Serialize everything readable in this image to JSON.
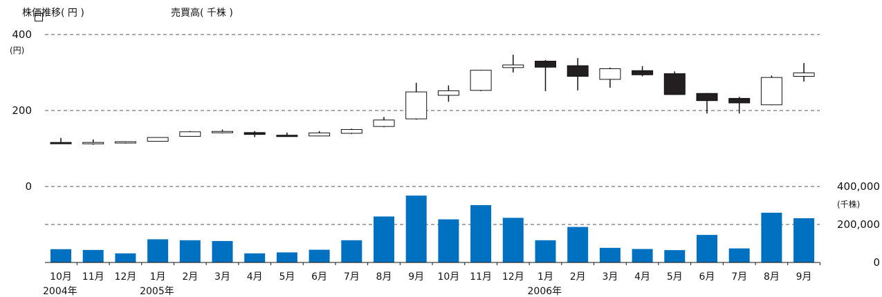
{
  "legend": {
    "price_label": "株価推移( 円 )",
    "volume_label": "売買高( 千株 )"
  },
  "colors": {
    "volume_bar": "#0070c0",
    "candle_up_fill": "#ffffff",
    "candle_down_fill": "#231f20",
    "grid": "#555555"
  },
  "chart_data": [
    {
      "type": "candlestick",
      "ylabel": "(円)",
      "ylim": [
        0,
        400
      ],
      "yticks": [
        "0",
        "200",
        "400"
      ],
      "grid": "dashed",
      "categories": [
        "10月",
        "11月",
        "12月",
        "1月",
        "2月",
        "3月",
        "4月",
        "5月",
        "6月",
        "7月",
        "8月",
        "9月",
        "10月",
        "11月",
        "12月",
        "1月",
        "2月",
        "3月",
        "4月",
        "5月",
        "6月",
        "7月",
        "8月",
        "9月"
      ],
      "open": [
        116,
        113,
        117,
        119,
        132,
        143,
        142,
        135,
        133,
        140,
        158,
        178,
        240,
        253,
        313,
        330,
        318,
        282,
        305,
        297,
        245,
        232,
        215,
        290
      ],
      "high": [
        128,
        124,
        119,
        130,
        146,
        150,
        146,
        142,
        146,
        152,
        183,
        273,
        266,
        307,
        347,
        333,
        338,
        313,
        317,
        303,
        246,
        236,
        292,
        325
      ],
      "low": [
        113,
        110,
        113,
        119,
        131,
        140,
        130,
        132,
        132,
        138,
        156,
        176,
        223,
        251,
        300,
        251,
        253,
        260,
        290,
        241,
        192,
        192,
        214,
        276
      ],
      "close": [
        114,
        116,
        118,
        129,
        144,
        145,
        137,
        134,
        141,
        150,
        175,
        249,
        252,
        306,
        320,
        314,
        290,
        310,
        294,
        242,
        226,
        220,
        287,
        299
      ]
    },
    {
      "type": "bar",
      "ylabel": "(千株)",
      "ylim": [
        0,
        400000
      ],
      "yticks": [
        "0",
        "200,000",
        "400,000"
      ],
      "grid": "dashed",
      "categories": [
        "10月",
        "11月",
        "12月",
        "1月",
        "2月",
        "3月",
        "4月",
        "5月",
        "6月",
        "7月",
        "8月",
        "9月",
        "10月",
        "11月",
        "12月",
        "1月",
        "2月",
        "3月",
        "4月",
        "5月",
        "6月",
        "7月",
        "8月",
        "9月"
      ],
      "values": [
        70000,
        66000,
        48000,
        122000,
        117000,
        113000,
        48000,
        53000,
        67000,
        117000,
        242000,
        352000,
        227000,
        302000,
        235000,
        117000,
        187000,
        77000,
        71000,
        65000,
        145000,
        74000,
        262000,
        233000
      ]
    }
  ],
  "year_labels": [
    {
      "index": 0,
      "text": "2004年"
    },
    {
      "index": 3,
      "text": "2005年"
    },
    {
      "index": 15,
      "text": "2006年"
    }
  ]
}
